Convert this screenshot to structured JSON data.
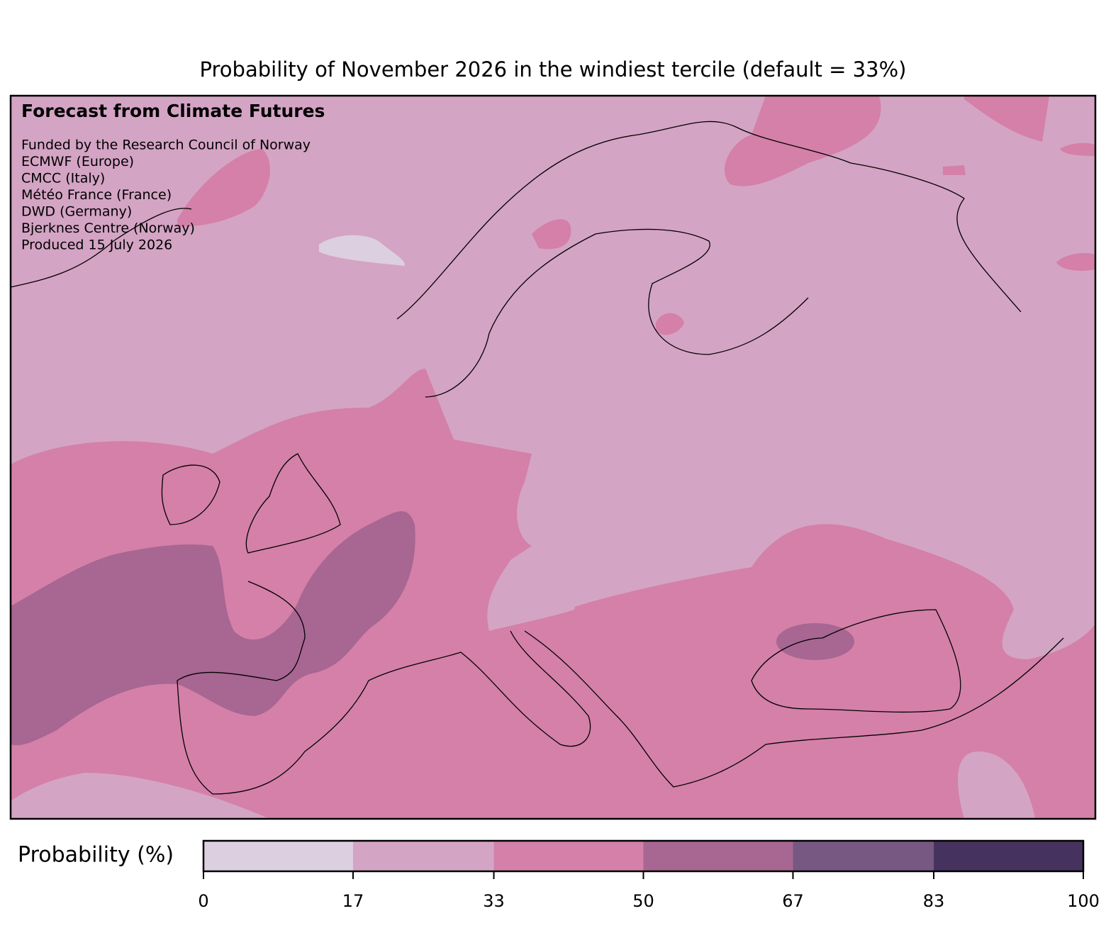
{
  "title": "Probability of November 2026 in the windiest tercile (default = 33%)",
  "map": {
    "annotation_title": "Forecast from Climate Futures",
    "credits": [
      "Funded by the Research Council of Norway",
      "ECMWF (Europe)",
      "CMCC (Italy)",
      "Météo France (France)",
      "DWD (Germany)",
      "Bjerknes Centre (Norway)",
      "Produced 15 July 2026"
    ]
  },
  "colorbar": {
    "label": "Probability (%)",
    "lim": [
      0,
      100
    ],
    "ticks": [
      0,
      17,
      33,
      50,
      67,
      83,
      100
    ],
    "colors": [
      "#dccfe0",
      "#d4a4c4",
      "#d480a8",
      "#a86692",
      "#765882",
      "#45325e"
    ]
  }
}
